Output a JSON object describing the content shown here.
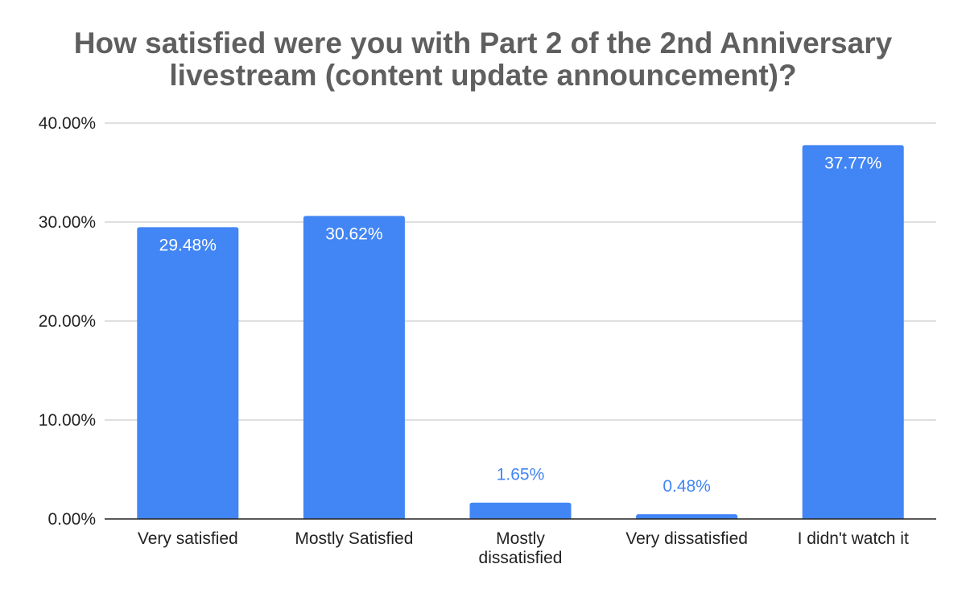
{
  "chart_data": {
    "type": "bar",
    "title_lines": [
      "How satisfied were you with Part 2 of the 2nd Anniversary",
      "livestream (content update announcement)?"
    ],
    "categories": [
      [
        "Very satisfied"
      ],
      [
        "Mostly Satisfied"
      ],
      [
        "Mostly",
        "dissatisfied"
      ],
      [
        "Very dissatisfied"
      ],
      [
        "I didn't watch it"
      ]
    ],
    "values": [
      29.48,
      30.62,
      1.65,
      0.48,
      37.77
    ],
    "value_labels": [
      "29.48%",
      "30.62%",
      "1.65%",
      "0.48%",
      "37.77%"
    ],
    "ylim": [
      0,
      40
    ],
    "yticks": [
      0,
      10,
      20,
      30,
      40
    ],
    "ytick_labels": [
      "0.00%",
      "10.00%",
      "20.00%",
      "30.00%",
      "40.00%"
    ],
    "xlabel": "",
    "ylabel": "",
    "grid": true,
    "legend": "none",
    "colors": {
      "bar": "#4285f4",
      "label_inside": "#ffffff",
      "label_outside": "#4285f4",
      "title": "#5f5f5f",
      "grid": "#cccccc",
      "axis": "#222222"
    }
  }
}
